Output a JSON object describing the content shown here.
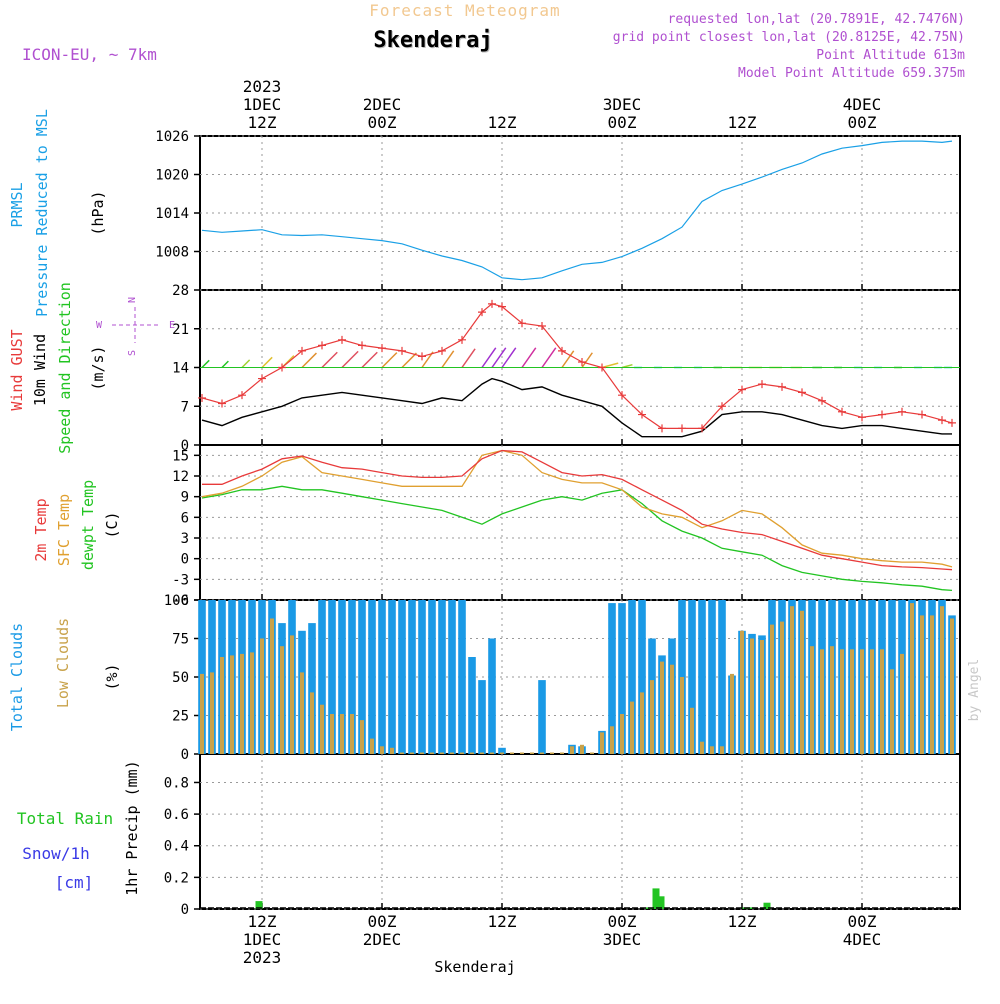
{
  "header": {
    "title": "Forecast Meteogram",
    "location": "Skenderaj",
    "model": "ICON-EU, ~ 7km",
    "requested": "requested lon,lat (20.7891E, 42.7476N)",
    "closest": "grid point closest lon,lat (20.8125E, 42.75N)",
    "point_alt": "Point Altitude 613m",
    "model_alt": "Model Point Altitude 659.375m",
    "footer_location": "Skenderaj",
    "watermark": "by Angel"
  },
  "time_axis": {
    "top_labels": [
      {
        "x": 6,
        "lines": [
          "2023",
          "1DEC",
          "12Z"
        ]
      },
      {
        "x": 18,
        "lines": [
          "2DEC",
          "00Z"
        ]
      },
      {
        "x": 30,
        "lines": [
          "12Z"
        ]
      },
      {
        "x": 42,
        "lines": [
          "3DEC",
          "00Z"
        ]
      },
      {
        "x": 54,
        "lines": [
          "12Z"
        ]
      },
      {
        "x": 66,
        "lines": [
          "4DEC",
          "00Z"
        ]
      }
    ],
    "bottom_labels": [
      {
        "x": 6,
        "lines": [
          "12Z",
          "1DEC",
          "2023"
        ]
      },
      {
        "x": 18,
        "lines": [
          "00Z",
          "2DEC"
        ]
      },
      {
        "x": 30,
        "lines": [
          "12Z"
        ]
      },
      {
        "x": 42,
        "lines": [
          "00Z",
          "3DEC"
        ]
      },
      {
        "x": 54,
        "lines": [
          "12Z"
        ]
      },
      {
        "x": 66,
        "lines": [
          "00Z",
          "4DEC"
        ]
      }
    ]
  },
  "panels": {
    "pressure": {
      "labels": [
        "PRMSL",
        "Pressure Reduced to MSL",
        "(hPa)"
      ],
      "ticks": [
        "1026",
        "1020",
        "1014",
        "1008"
      ]
    },
    "wind": {
      "labels": [
        "Wind GUST",
        "10m Wind",
        "Speed and Direction",
        "(m/s)"
      ],
      "ticks": [
        "28",
        "21",
        "14",
        "7",
        "0"
      ],
      "compass": [
        "N",
        "W",
        "E",
        "S"
      ]
    },
    "temp": {
      "labels": [
        "2m Temp",
        "SFC Temp",
        "dewpt Temp",
        "(C)"
      ],
      "ticks": [
        "15",
        "12",
        "9",
        "6",
        "3",
        "0",
        "-3",
        "-6"
      ]
    },
    "clouds": {
      "labels": [
        "Total Clouds",
        "Low Clouds",
        "(%)"
      ],
      "ticks": [
        "100",
        "75",
        "50",
        "25",
        "0"
      ]
    },
    "precip": {
      "labels": [
        "Total Rain",
        "Snow/1h",
        "[cm]",
        "1hr Precip (mm)"
      ],
      "ticks": [
        "0.8",
        "0.6",
        "0.4",
        "0.2",
        "0"
      ]
    }
  },
  "colors": {
    "pressure": "#1aa0e6",
    "gust": "#e83a3a",
    "wind": "#000000",
    "temp2m": "#e83a3a",
    "sfc": "#e0a030",
    "dew": "#22c422",
    "total_cloud": "#1a9ae6",
    "low_cloud": "#c8a24a",
    "rain": "#22c422",
    "snow": "#3a3ae6",
    "title": "#f2c890",
    "meta": "#b050d0"
  },
  "chart_data": [
    {
      "type": "line",
      "title": "PRMSL Pressure Reduced to MSL",
      "ylabel": "hPa",
      "ylim": [
        1002,
        1026
      ],
      "xlim": [
        -0.2,
        75.8
      ],
      "x": [
        0,
        2,
        4,
        6,
        8,
        10,
        12,
        14,
        16,
        18,
        20,
        22,
        24,
        26,
        28,
        30,
        32,
        34,
        36,
        38,
        40,
        42,
        44,
        46,
        48,
        50,
        52,
        54,
        56,
        58,
        60,
        62,
        64,
        66,
        68,
        70,
        72,
        74,
        75
      ],
      "values": [
        1011.3,
        1011.0,
        1011.2,
        1011.4,
        1010.6,
        1010.5,
        1010.6,
        1010.3,
        1010.0,
        1009.7,
        1009.2,
        1008.2,
        1007.3,
        1006.6,
        1005.6,
        1003.9,
        1003.6,
        1003.9,
        1005.0,
        1006.0,
        1006.3,
        1007.2,
        1008.5,
        1010.0,
        1011.8,
        1015.8,
        1017.5,
        1018.5,
        1019.6,
        1020.8,
        1021.8,
        1023.2,
        1024.1,
        1024.5,
        1025.0,
        1025.2,
        1025.2,
        1025.0,
        1025.2
      ],
      "grid": true
    },
    {
      "type": "line",
      "title": "Wind GUST / 10m Wind Speed and Direction",
      "ylabel": "m/s",
      "ylim": [
        0,
        28
      ],
      "xlim": [
        -0.2,
        75.8
      ],
      "x": [
        0,
        2,
        4,
        6,
        8,
        10,
        12,
        14,
        16,
        18,
        20,
        22,
        24,
        26,
        28,
        29,
        30,
        32,
        34,
        36,
        38,
        40,
        42,
        44,
        46,
        48,
        50,
        52,
        54,
        56,
        58,
        60,
        62,
        64,
        66,
        68,
        70,
        72,
        74,
        75
      ],
      "series": [
        {
          "name": "Wind GUST",
          "values": [
            8.5,
            7.5,
            9.0,
            12.0,
            14.0,
            17.0,
            18.0,
            19.0,
            18.0,
            17.5,
            17.0,
            16.0,
            17.0,
            19.0,
            24.0,
            25.5,
            25.0,
            22.0,
            21.5,
            17.0,
            15.0,
            14.0,
            9.0,
            5.5,
            3.0,
            3.0,
            3.0,
            7.0,
            10.0,
            11.0,
            10.5,
            9.5,
            8.0,
            6.0,
            5.0,
            5.5,
            6.0,
            5.5,
            4.5,
            4.0
          ]
        },
        {
          "name": "10m Wind",
          "values": [
            4.5,
            3.5,
            5.0,
            6.0,
            7.0,
            8.5,
            9.0,
            9.5,
            9.0,
            8.5,
            8.0,
            7.5,
            8.5,
            8.0,
            11.0,
            12.0,
            11.5,
            10.0,
            10.5,
            9.0,
            8.0,
            7.0,
            4.0,
            1.5,
            1.5,
            1.5,
            2.5,
            5.5,
            6.0,
            6.0,
            5.5,
            4.5,
            3.5,
            3.0,
            3.5,
            3.5,
            3.0,
            2.5,
            2.0,
            2.0
          ]
        }
      ],
      "grid": true
    },
    {
      "type": "line",
      "title": "2m Temp / SFC Temp / dewpt Temp",
      "ylabel": "C",
      "ylim": [
        -6,
        16.5
      ],
      "xlim": [
        -0.2,
        75.8
      ],
      "x": [
        0,
        2,
        4,
        6,
        8,
        10,
        12,
        14,
        16,
        18,
        20,
        22,
        24,
        26,
        28,
        30,
        32,
        34,
        36,
        38,
        40,
        42,
        44,
        46,
        48,
        50,
        52,
        54,
        56,
        58,
        60,
        62,
        64,
        66,
        68,
        70,
        72,
        74,
        75
      ],
      "series": [
        {
          "name": "2m Temp",
          "values": [
            10.8,
            10.8,
            12.0,
            13.0,
            14.5,
            14.9,
            14.0,
            13.2,
            13.0,
            12.5,
            12.0,
            11.8,
            11.8,
            12.0,
            14.5,
            15.7,
            15.5,
            14.0,
            12.5,
            12.0,
            12.2,
            11.5,
            10.0,
            8.5,
            7.0,
            5.0,
            4.3,
            3.8,
            3.5,
            2.5,
            1.5,
            0.5,
            0.0,
            -0.5,
            -1.0,
            -1.2,
            -1.3,
            -1.5,
            -1.6
          ]
        },
        {
          "name": "SFC Temp",
          "values": [
            9.0,
            9.5,
            10.5,
            12.0,
            14.0,
            14.8,
            12.5,
            12.0,
            11.5,
            11.0,
            10.5,
            10.5,
            10.5,
            10.5,
            15.0,
            15.7,
            15.0,
            12.5,
            11.5,
            11.0,
            11.0,
            10.0,
            7.5,
            6.5,
            6.0,
            4.5,
            5.5,
            7.0,
            6.5,
            4.5,
            2.0,
            0.8,
            0.5,
            0.0,
            -0.3,
            -0.5,
            -0.5,
            -0.8,
            -1.2
          ]
        },
        {
          "name": "dewpt Temp",
          "values": [
            8.8,
            9.3,
            10.0,
            10.0,
            10.5,
            10.0,
            10.0,
            9.5,
            9.0,
            8.5,
            8.0,
            7.5,
            7.0,
            6.0,
            5.0,
            6.5,
            7.5,
            8.5,
            9.0,
            8.5,
            9.5,
            10.0,
            8.0,
            5.5,
            4.0,
            3.0,
            1.5,
            1.0,
            0.5,
            -1.0,
            -2.0,
            -2.5,
            -3.0,
            -3.3,
            -3.5,
            -3.8,
            -4.0,
            -4.5,
            -4.6
          ]
        }
      ],
      "grid": true
    },
    {
      "type": "bar",
      "title": "Total Clouds / Low Clouds",
      "ylabel": "%",
      "ylim": [
        0,
        100
      ],
      "xlim": [
        -0.2,
        75.8
      ],
      "x": [
        0,
        1,
        2,
        3,
        4,
        5,
        6,
        7,
        8,
        9,
        10,
        11,
        12,
        13,
        14,
        15,
        16,
        17,
        18,
        19,
        20,
        21,
        22,
        23,
        24,
        25,
        26,
        27,
        28,
        29,
        30,
        31,
        32,
        33,
        34,
        35,
        36,
        37,
        38,
        39,
        40,
        41,
        42,
        43,
        44,
        45,
        46,
        47,
        48,
        49,
        50,
        51,
        52,
        53,
        54,
        55,
        56,
        57,
        58,
        59,
        60,
        61,
        62,
        63,
        64,
        65,
        66,
        67,
        68,
        69,
        70,
        71,
        72,
        73,
        74,
        75
      ],
      "series": [
        {
          "name": "Total Clouds",
          "values": [
            100,
            100,
            100,
            100,
            100,
            100,
            100,
            100,
            85,
            100,
            80,
            85,
            100,
            100,
            100,
            100,
            100,
            100,
            100,
            100,
            100,
            100,
            100,
            100,
            100,
            100,
            100,
            63,
            48,
            75,
            4,
            0,
            0,
            0,
            48,
            0,
            0,
            6,
            5,
            0,
            15,
            98,
            98,
            100,
            100,
            75,
            64,
            75,
            100,
            100,
            100,
            100,
            100,
            51,
            80,
            78,
            77,
            100,
            100,
            100,
            100,
            100,
            100,
            100,
            100,
            100,
            100,
            100,
            100,
            100,
            100,
            100,
            100,
            100,
            100,
            90
          ]
        },
        {
          "name": "Low Clouds",
          "values": [
            52,
            53,
            63,
            64,
            65,
            66,
            75,
            88,
            70,
            77,
            53,
            40,
            32,
            26,
            26,
            26,
            22,
            10,
            5,
            4,
            1,
            1,
            1,
            1,
            1,
            1,
            1,
            1,
            1,
            1,
            1,
            1,
            1,
            1,
            1,
            1,
            1,
            5,
            6,
            1,
            14,
            18,
            26,
            34,
            40,
            48,
            60,
            58,
            50,
            30,
            8,
            5,
            5,
            52,
            80,
            75,
            74,
            84,
            86,
            96,
            93,
            70,
            68,
            70,
            68,
            68,
            68,
            68,
            68,
            55,
            65,
            98,
            90,
            90,
            96,
            88
          ]
        }
      ],
      "grid": true
    },
    {
      "type": "bar",
      "title": "Total Rain / Snow/1h",
      "ylabel": "1hr Precip (mm)",
      "ylim": [
        0,
        0.98
      ],
      "xlim": [
        -0.2,
        75.8
      ],
      "x": [
        5.7,
        44.7,
        45.4,
        45.9,
        54.4,
        54.9,
        56.5
      ],
      "series": [
        {
          "name": "Total Rain",
          "values": [
            0.05,
            0.01,
            0.13,
            0.08,
            0.01,
            0.01,
            0.04
          ]
        }
      ],
      "grid": true
    }
  ]
}
